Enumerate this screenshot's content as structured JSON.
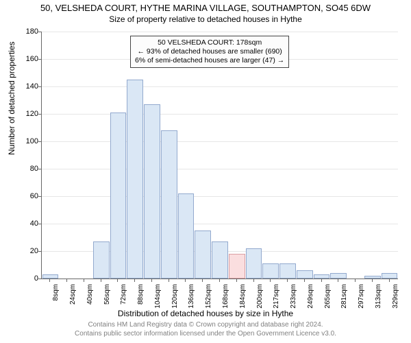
{
  "title": "50, VELSHEDA COURT, HYTHE MARINA VILLAGE, SOUTHAMPTON, SO45 6DW",
  "subtitle": "Size of property relative to detached houses in Hythe",
  "ylabel": "Number of detached properties",
  "xlabel": "Distribution of detached houses by size in Hythe",
  "footer_line1": "Contains HM Land Registry data © Crown copyright and database right 2024.",
  "footer_line2": "Contains public sector information licensed under the Open Government Licence v3.0.",
  "annotation": {
    "line1": "50 VELSHEDA COURT: 178sqm",
    "line2": "← 93% of detached houses are smaller (690)",
    "line3": "6% of semi-detached houses are larger (47) →"
  },
  "chart": {
    "type": "histogram",
    "ylim": [
      0,
      180
    ],
    "ytick_step": 20,
    "categories": [
      "8sqm",
      "24sqm",
      "40sqm",
      "56sqm",
      "72sqm",
      "88sqm",
      "104sqm",
      "120sqm",
      "136sqm",
      "152sqm",
      "168sqm",
      "184sqm",
      "200sqm",
      "217sqm",
      "233sqm",
      "249sqm",
      "265sqm",
      "281sqm",
      "297sqm",
      "313sqm",
      "329sqm"
    ],
    "values": [
      3,
      0,
      0,
      27,
      121,
      145,
      127,
      108,
      62,
      35,
      27,
      18,
      22,
      11,
      11,
      6,
      3,
      4,
      0,
      2,
      4
    ],
    "highlight_index": 11,
    "bar_fill": "#dae7f5",
    "bar_border": "#92a9ce",
    "highlight_fill": "#fadedf",
    "highlight_border": "#db9fa3",
    "background_color": "#ffffff",
    "grid_color": "#e6e6e6",
    "axis_color": "#676767",
    "title_fontsize": 13,
    "subtitle_fontsize": 12,
    "label_fontsize": 12,
    "tick_fontsize": 11
  }
}
